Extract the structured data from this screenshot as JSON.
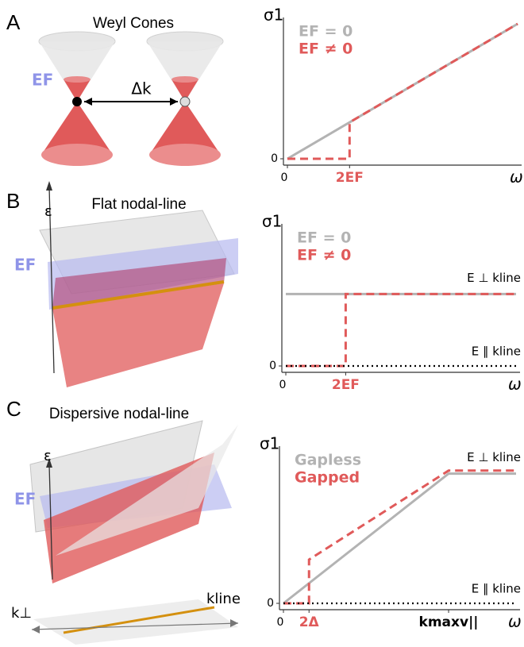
{
  "panels": [
    {
      "letter": "A",
      "title": "Weyl Cones",
      "ef": "EF",
      "dk": "Δk"
    },
    {
      "letter": "B",
      "title": "Flat nodal-line",
      "eps": "ε",
      "ef": "EF"
    },
    {
      "letter": "C",
      "title": "Dispersive nodal-line",
      "eps": "ε",
      "ef": "EF",
      "kperp": "k⊥",
      "kline": "kline"
    }
  ],
  "chart_data": [
    {
      "type": "line",
      "ylabel": "σ1",
      "xlabel": "ω",
      "xlim": [
        0,
        10
      ],
      "ylim": [
        0,
        10
      ],
      "xticks": [
        0,
        {
          "value": 2.7,
          "label": "2EF"
        }
      ],
      "yticks": [
        0
      ],
      "series": [
        {
          "name": "EF = 0",
          "color": "#b3b3b3",
          "style": "solid",
          "x": [
            0,
            10
          ],
          "values": [
            0,
            10
          ]
        },
        {
          "name": "EF ≠ 0",
          "color": "#e05a5a",
          "style": "dashed",
          "x": [
            0,
            2.7,
            2.7,
            10
          ],
          "values": [
            0,
            0,
            2.7,
            10
          ]
        }
      ]
    },
    {
      "type": "line",
      "ylabel": "σ1",
      "xlabel": "ω",
      "xlim": [
        0,
        10
      ],
      "ylim": [
        0,
        10
      ],
      "xticks": [
        0,
        {
          "value": 2.6,
          "label": "2EF"
        }
      ],
      "yticks": [
        0
      ],
      "annotations": [
        "E ⊥ kline"
      ],
      "series": [
        {
          "name": "EF = 0",
          "color": "#b3b3b3",
          "style": "solid",
          "x": [
            0,
            10
          ],
          "values": [
            5.3,
            5.3
          ]
        },
        {
          "name": "EF ≠ 0",
          "color": "#e05a5a",
          "style": "dashed",
          "x": [
            0,
            2.6,
            2.6,
            10
          ],
          "values": [
            0,
            0,
            5.3,
            5.3
          ]
        },
        {
          "name": "E ∥ kline",
          "color": "#000000",
          "style": "dotted",
          "legend": false,
          "x": [
            0,
            10
          ],
          "values": [
            0,
            0
          ]
        }
      ]
    },
    {
      "type": "line",
      "ylabel": "σ1",
      "xlabel": "ω",
      "xlim": [
        0,
        10
      ],
      "ylim": [
        0,
        10
      ],
      "xticks": [
        0,
        {
          "value": 1.1,
          "label": "2Δ"
        },
        {
          "value": 7.1,
          "label": "kmaxv||"
        }
      ],
      "yticks": [
        0
      ],
      "annotations": [
        "E ⊥ kline"
      ],
      "series": [
        {
          "name": "Gapless",
          "color": "#b3b3b3",
          "style": "solid",
          "x": [
            0,
            7.1,
            10
          ],
          "values": [
            0,
            8.6,
            8.6
          ]
        },
        {
          "name": "Gapped",
          "color": "#e05a5a",
          "style": "dashed",
          "x": [
            0,
            1.1,
            1.1,
            7.1,
            10
          ],
          "values": [
            0,
            0,
            2.9,
            8.8,
            8.8
          ]
        },
        {
          "name": "E ∥ kline",
          "color": "#000000",
          "style": "dotted",
          "legend": false,
          "x": [
            0,
            10
          ],
          "values": [
            0,
            0
          ]
        }
      ]
    }
  ]
}
